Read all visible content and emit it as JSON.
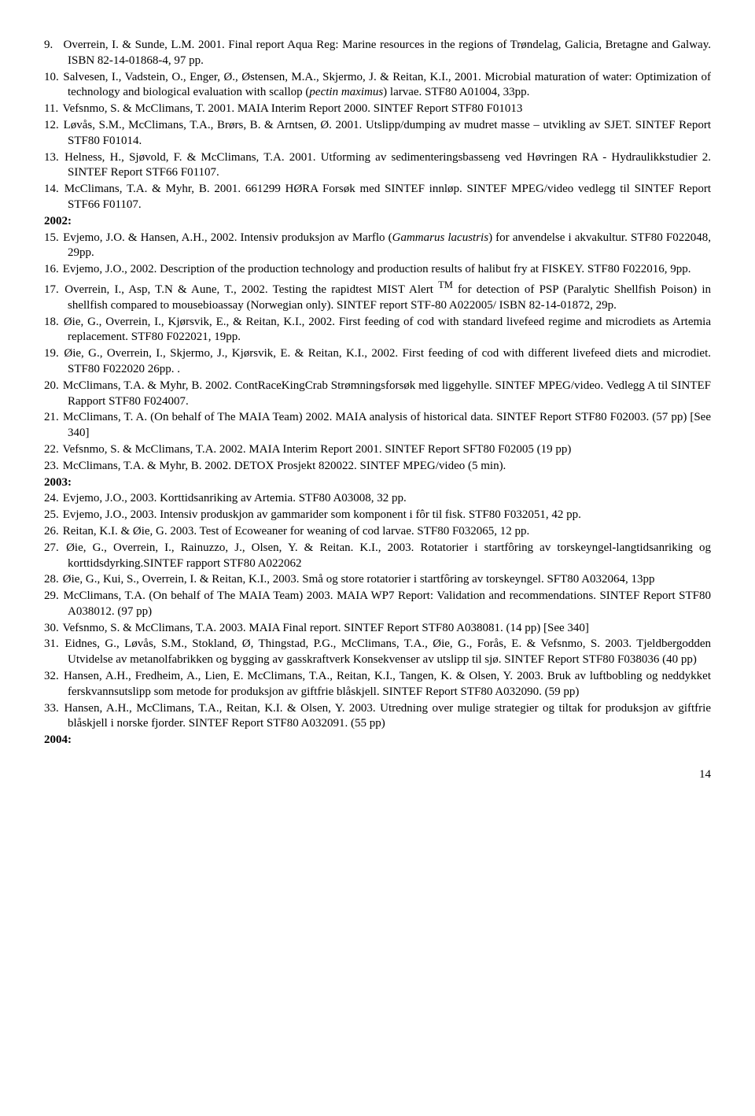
{
  "page_number": "14",
  "entries": [
    {
      "type": "ref",
      "num": "9.",
      "html": "Overrein, I. & Sunde, L.M. 2001. Final report Aqua Reg: Marine resources in the regions of Trøndelag, Galicia, Bretagne and Galway. ISBN 82-14-01868-4, 97 pp."
    },
    {
      "type": "ref",
      "num": "10.",
      "html": "Salvesen, I., Vadstein, O., Enger, Ø., Østensen, M.A., Skjermo, J. & Reitan, K.I., 2001. Microbial maturation of water: Optimization of technology and biological evaluation with scallop (<span class=\"italic\">pectin maximus</span>) larvae. STF80 A01004, 33pp."
    },
    {
      "type": "ref",
      "num": "11.",
      "html": "Vefsnmo, S. & McClimans, T. 2001. MAIA Interim Report 2000. SINTEF Report STF80 F01013"
    },
    {
      "type": "ref",
      "num": "12.",
      "html": "Løvås, S.M., McClimans, T.A., Brørs, B. & Arntsen, Ø. 2001. Utslipp/dumping av mudret masse – utvikling av SJET. SINTEF Report STF80 F01014."
    },
    {
      "type": "ref",
      "num": "13.",
      "html": "Helness, H., Sjøvold, F. & McClimans, T.A. 2001. Utforming av sedimenteringsbasseng ved Høvringen RA - Hydraulikkstudier 2. SINTEF Report STF66 F01107."
    },
    {
      "type": "ref",
      "num": "14.",
      "html": "McClimans, T.A. & Myhr, B. 2001. 661299 HØRA Forsøk med SINTEF innløp. SINTEF MPEG/video vedlegg til SINTEF Report STF66 F01107."
    },
    {
      "type": "year",
      "label": "2002:"
    },
    {
      "type": "ref",
      "num": "15.",
      "html": "Evjemo, J.O. & Hansen, A.H., 2002. Intensiv produksjon av Marflo (<span class=\"italic\">Gammarus lacustris</span>) for anvendelse i akvakultur. STF80 F022048, 29pp."
    },
    {
      "type": "ref",
      "num": "16.",
      "html": "Evjemo, J.O., 2002. Description of the production technology and production results of halibut fry at FISKEY. STF80 F022016, 9pp."
    },
    {
      "type": "ref",
      "num": "17.",
      "html": "Overrein, I., Asp, T.N & Aune, T., 2002. Testing the rapidtest MIST Alert <sup>TM</sup> for detection of PSP (Paralytic Shellfish Poison) in shellfish compared to mousebioassay (Norwegian only). SINTEF report STF-80 A022005/ ISBN 82-14-01872, 29p."
    },
    {
      "type": "ref",
      "num": "18.",
      "html": "Øie, G., Overrein, I., Kjørsvik, E., & Reitan, K.I., 2002. First feeding of cod with standard livefeed regime and microdiets as Artemia replacement. STF80 F022021, 19pp."
    },
    {
      "type": "ref",
      "num": "19.",
      "html": "Øie, G., Overrein, I., Skjermo, J., Kjørsvik, E. & Reitan, K.I., 2002. First feeding of cod with different livefeed diets and microdiet. STF80 F022020 26pp. ."
    },
    {
      "type": "ref",
      "num": "20.",
      "html": "McClimans, T.A. & Myhr, B. 2002. ContRaceKingCrab Strømningsforsøk med liggehylle. SINTEF MPEG/video. Vedlegg A til SINTEF Rapport STF80 F024007."
    },
    {
      "type": "ref",
      "num": "21.",
      "html": "McClimans, T. A. (On behalf of The MAIA Team) 2002. MAIA analysis of historical data. SINTEF Report STF80 F02003. (57 pp) [See 340]"
    },
    {
      "type": "ref",
      "num": "22.",
      "html": "Vefsnmo, S. & McClimans, T.A. 2002. MAIA Interim Report 2001. SINTEF Report SFT80 F02005 (19 pp)"
    },
    {
      "type": "ref",
      "num": "23.",
      "html": "McClimans, T.A. & Myhr, B. 2002. DETOX Prosjekt 820022. SINTEF MPEG/video (5 min)."
    },
    {
      "type": "year",
      "label": "2003:"
    },
    {
      "type": "ref",
      "num": "24.",
      "html": "Evjemo, J.O., 2003. Korttidsanriking av Artemia. STF80 A03008, 32 pp."
    },
    {
      "type": "ref",
      "num": "25.",
      "html": "Evjemo, J.O., 2003. Intensiv produskjon av gammarider som komponent i fôr til fisk. STF80 F032051, 42 pp."
    },
    {
      "type": "ref",
      "num": "26.",
      "html": "Reitan, K.I. & Øie, G. 2003. Test of Ecoweaner for weaning of cod larvae. STF80 F032065, 12 pp."
    },
    {
      "type": "ref",
      "num": "27.",
      "html": "Øie, G., Overrein, I., Rainuzzo, J., Olsen, Y. & Reitan. K.I., 2003. Rotatorier i startfôring av torskeyngel-langtidsanriking og korttidsdyrking.SINTEF rapport STF80 A022062"
    },
    {
      "type": "ref",
      "num": "28.",
      "html": "Øie, G., Kui, S., Overrein, I. & Reitan, K.I., 2003. Små og store rotatorier i startfôring av torskeyngel. SFT80 A032064, 13pp"
    },
    {
      "type": "ref",
      "num": "29.",
      "html": "McClimans, T.A. (On behalf of The MAIA Team) 2003. MAIA WP7 Report: Validation and recommendations. SINTEF Report STF80 A038012. (97 pp)"
    },
    {
      "type": "ref",
      "num": "30.",
      "html": "Vefsnmo, S. & McClimans, T.A. 2003. MAIA Final report. SINTEF Report STF80 A038081. (14 pp) [See 340]"
    },
    {
      "type": "ref",
      "num": "31.",
      "html": "Eidnes, G., Løvås, S.M., Stokland, Ø, Thingstad, P.G., McClimans, T.A., Øie, G., Forås, E. & Vefsnmo, S. 2003. Tjeldbergodden Utvidelse av metanolfabrikken og bygging av gasskraftverk Konsekvenser av utslipp til sjø. SINTEF Report STF80 F038036 (40 pp)"
    },
    {
      "type": "ref",
      "num": "32.",
      "html": "Hansen, A.H., Fredheim, A., Lien, E. McClimans, T.A., Reitan, K.I., Tangen, K. & Olsen, Y. 2003. Bruk av luftbobling og neddykket ferskvannsutslipp som metode for produksjon av giftfrie blåskjell. SINTEF Report STF80 A032090. (59 pp)"
    },
    {
      "type": "ref",
      "num": "33.",
      "html": "Hansen, A.H., McClimans, T.A., Reitan, K.I. & Olsen, Y. 2003. Utredning over mulige strategier og tiltak for produksjon av giftfrie blåskjell i norske fjorder. SINTEF Report STF80 A032091. (55 pp)"
    },
    {
      "type": "year",
      "label": "2004:"
    }
  ]
}
